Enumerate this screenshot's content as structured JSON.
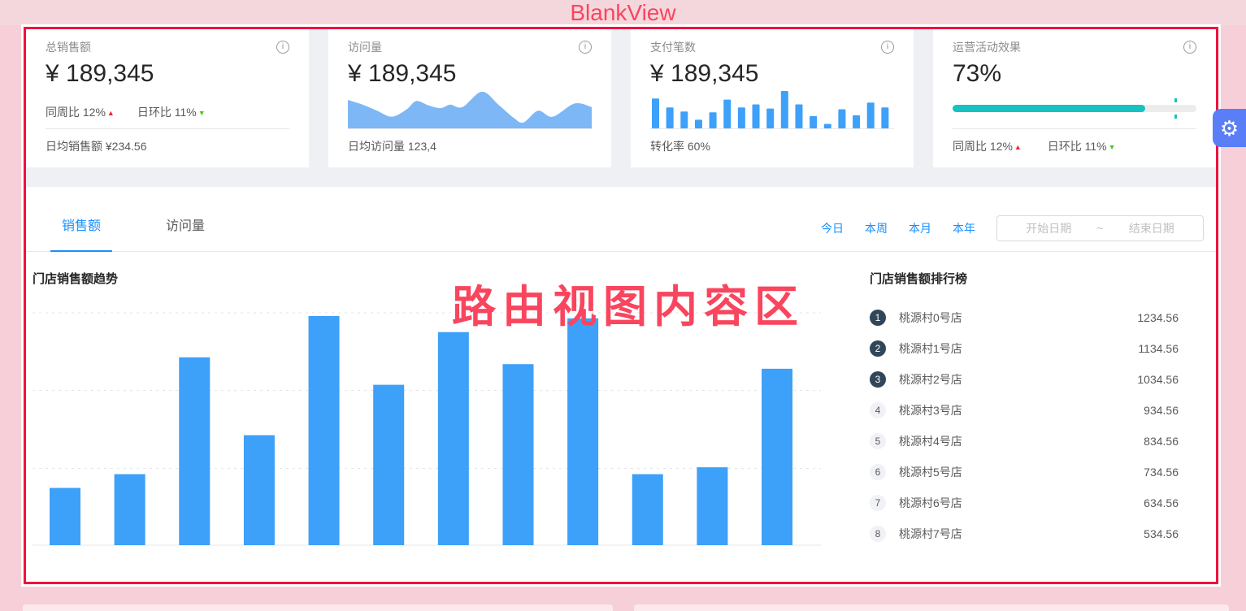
{
  "page_title": "BlankView",
  "icons": {
    "info": "i",
    "gear": "⚙",
    "up": "▲",
    "down": "▼"
  },
  "stat_cards": [
    {
      "label": "总销售额",
      "value": "¥ 189,345",
      "trend_week": "同周比 12%",
      "trend_day": "日环比 11%",
      "footer": "日均销售额 ¥234.56"
    },
    {
      "label": "访问量",
      "value": "¥ 189,345",
      "footer": "日均访问量 123,4"
    },
    {
      "label": "支付笔数",
      "value": "¥ 189,345",
      "footer": "转化率 60%"
    },
    {
      "label": "运营活动效果",
      "value": "73%",
      "trend_week": "同周比 12%",
      "trend_day": "日环比 11%",
      "progress_percent": 79,
      "progress_marker_percent": 91,
      "progress_color": "#17c2c2"
    }
  ],
  "tabs": [
    {
      "label": "销售额",
      "active": true
    },
    {
      "label": "访问量",
      "active": false
    }
  ],
  "filters": {
    "quick": [
      "今日",
      "本周",
      "本月",
      "本年"
    ],
    "date_start_placeholder": "开始日期",
    "date_separator": "~",
    "date_end_placeholder": "结束日期"
  },
  "overlay_text": "路由视图内容区",
  "ranking": {
    "title": "门店销售额排行榜",
    "items": [
      {
        "rank": "1",
        "name": "桃源村0号店",
        "value": "1234.56"
      },
      {
        "rank": "2",
        "name": "桃源村1号店",
        "value": "1134.56"
      },
      {
        "rank": "3",
        "name": "桃源村2号店",
        "value": "1034.56"
      },
      {
        "rank": "4",
        "name": "桃源村3号店",
        "value": "934.56"
      },
      {
        "rank": "5",
        "name": "桃源村4号店",
        "value": "834.56"
      },
      {
        "rank": "6",
        "name": "桃源村5号店",
        "value": "734.56"
      },
      {
        "rank": "7",
        "name": "桃源村6号店",
        "value": "634.56"
      },
      {
        "rank": "8",
        "name": "桃源村7号店",
        "value": "534.56"
      }
    ]
  },
  "chart_data": [
    {
      "id": "store-sales-trend",
      "type": "bar",
      "title": "门店销售额趋势",
      "values": [
        25,
        31,
        82,
        48,
        100,
        70,
        93,
        79,
        99,
        31,
        34,
        77
      ],
      "values_unit": "percent_of_tallest_bar (chart shows no numeric axis labels)",
      "categories": [
        "",
        "",
        "",
        "",
        "",
        "",
        "",
        "",
        "",
        "",
        "",
        ""
      ],
      "xlabel": "",
      "ylabel": "",
      "ylim": [
        0,
        105
      ],
      "grid": "3 dashed horizontal gridlines + solid baseline",
      "legend": "none",
      "bar_color": "#3da0f9"
    },
    {
      "id": "visits-sparkline-area",
      "type": "area",
      "x": [
        0,
        6,
        12,
        18,
        24,
        28,
        33,
        38,
        42,
        47,
        55,
        62,
        68,
        72,
        78,
        84,
        93,
        100
      ],
      "values": [
        75,
        62,
        45,
        28,
        48,
        72,
        60,
        52,
        62,
        55,
        98,
        60,
        25,
        12,
        45,
        28,
        65,
        55
      ],
      "values_unit": "percent_of_sparkline_height (unlabeled mini chart)",
      "area_color": "#7db7f5"
    },
    {
      "id": "payments-sparkbars",
      "type": "bar",
      "values": [
        80,
        56,
        45,
        23,
        43,
        77,
        56,
        64,
        53,
        100,
        64,
        33,
        12,
        51,
        35,
        69,
        56
      ],
      "values_unit": "percent_of_tallest_bar (unlabeled mini chart)",
      "bar_color": "#3da0f9"
    }
  ],
  "colors": {
    "page_pink": "#f7cfd8",
    "highlight_border_red": "#f0123f",
    "overlay_text_red": "#f9455e",
    "accent_blue": "#1890ff",
    "bar_blue": "#3da0f9",
    "area_blue": "#7db7f5",
    "progress_teal": "#17c2c2",
    "trend_up_red": "#f5222d",
    "trend_down_green": "#52c41a",
    "rank_badge_dark": "#314659"
  }
}
